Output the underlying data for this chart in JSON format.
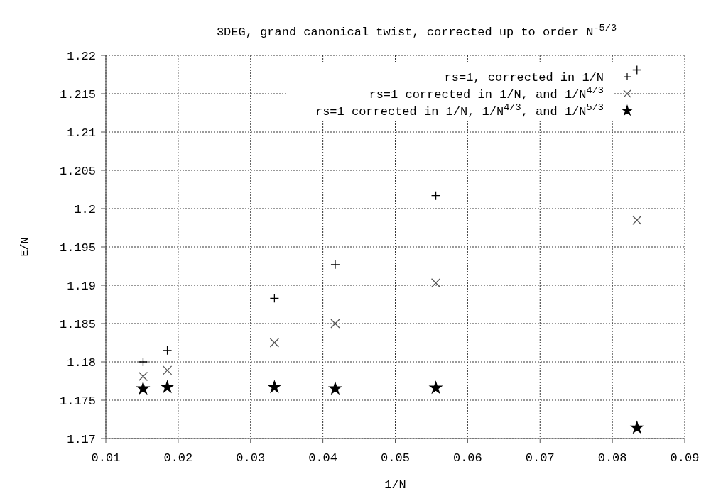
{
  "chart_data": {
    "type": "scatter",
    "title": "3DEG, grand canonical twist, corrected up to order N$^{-5/3}$",
    "xlabel": "1/N",
    "ylabel": "E/N",
    "xlim": [
      0.01,
      0.09
    ],
    "xticks": [
      0.01,
      0.02,
      0.03,
      0.04,
      0.05,
      0.06,
      0.07,
      0.08,
      0.09
    ],
    "ylim": [
      1.17,
      1.22
    ],
    "yticks": [
      1.17,
      1.175,
      1.18,
      1.185,
      1.19,
      1.195,
      1.2,
      1.205,
      1.21,
      1.215,
      1.22
    ],
    "grid": true,
    "legend": "top right",
    "series": [
      {
        "name": "rs=1, corrected in 1/N",
        "color": "#000000",
        "marker": "cross",
        "x": [
          0.01515,
          0.0185,
          0.0333,
          0.0417,
          0.0556,
          0.0834
        ],
        "values": [
          1.18,
          1.1815,
          1.1883,
          1.1927,
          1.2017,
          1.2181
        ]
      },
      {
        "name": "rs=1 corrected in 1/N, and 1/N$^{4/3}$",
        "color": "#555555",
        "marker": "x",
        "x": [
          0.01515,
          0.0185,
          0.0333,
          0.0417,
          0.0556,
          0.0834
        ],
        "values": [
          1.1781,
          1.1789,
          1.1825,
          1.185,
          1.1903,
          1.1985
        ]
      },
      {
        "name": "rs=1 corrected in 1/N, 1/N$^{4/3}$, and 1/N$^{5/3}$",
        "color": "#000000",
        "marker": "star",
        "x": [
          0.01515,
          0.0185,
          0.0333,
          0.0417,
          0.0556,
          0.0834
        ],
        "values": [
          1.1765,
          1.1767,
          1.1767,
          1.1765,
          1.1766,
          1.1714
        ]
      }
    ]
  }
}
